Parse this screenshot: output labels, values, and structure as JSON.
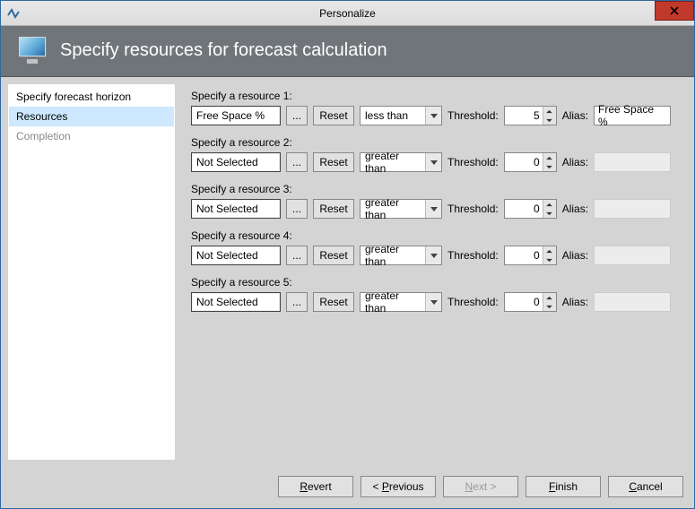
{
  "window": {
    "title": "Personalize",
    "close_icon": "close"
  },
  "header": {
    "title": "Specify resources for forecast calculation",
    "icon": "monitor",
    "bg_color": "#70757a",
    "title_color": "#ffffff"
  },
  "sidebar": {
    "items": [
      {
        "label": "Specify forecast horizon",
        "active": false,
        "disabled": false
      },
      {
        "label": "Resources",
        "active": true,
        "disabled": false
      },
      {
        "label": "Completion",
        "active": false,
        "disabled": true
      }
    ],
    "active_bg": "#cde8ff"
  },
  "main": {
    "row_label_prefix": "Specify a resource",
    "dots_label": "...",
    "reset_label": "Reset",
    "threshold_label": "Threshold:",
    "alias_label": "Alias:",
    "comparison_options": [
      "less than",
      "greater than"
    ],
    "resources": [
      {
        "idx": 1,
        "name": "Free Space %",
        "selected": true,
        "comparison": "less than",
        "threshold": 5,
        "alias": "Free Space %"
      },
      {
        "idx": 2,
        "name": "Not Selected",
        "selected": false,
        "comparison": "greater than",
        "threshold": 0,
        "alias": ""
      },
      {
        "idx": 3,
        "name": "Not Selected",
        "selected": false,
        "comparison": "greater than",
        "threshold": 0,
        "alias": ""
      },
      {
        "idx": 4,
        "name": "Not Selected",
        "selected": false,
        "comparison": "greater than",
        "threshold": 0,
        "alias": ""
      },
      {
        "idx": 5,
        "name": "Not Selected",
        "selected": false,
        "comparison": "greater than",
        "threshold": 0,
        "alias": ""
      }
    ]
  },
  "footer": {
    "revert": "Revert",
    "previous": "< Previous",
    "next": "Next >",
    "finish": "Finish",
    "cancel": "Cancel",
    "next_disabled": true
  },
  "colors": {
    "window_border": "#2c6aa0",
    "body_bg": "#d4d4d4",
    "close_bg": "#c0392b"
  }
}
